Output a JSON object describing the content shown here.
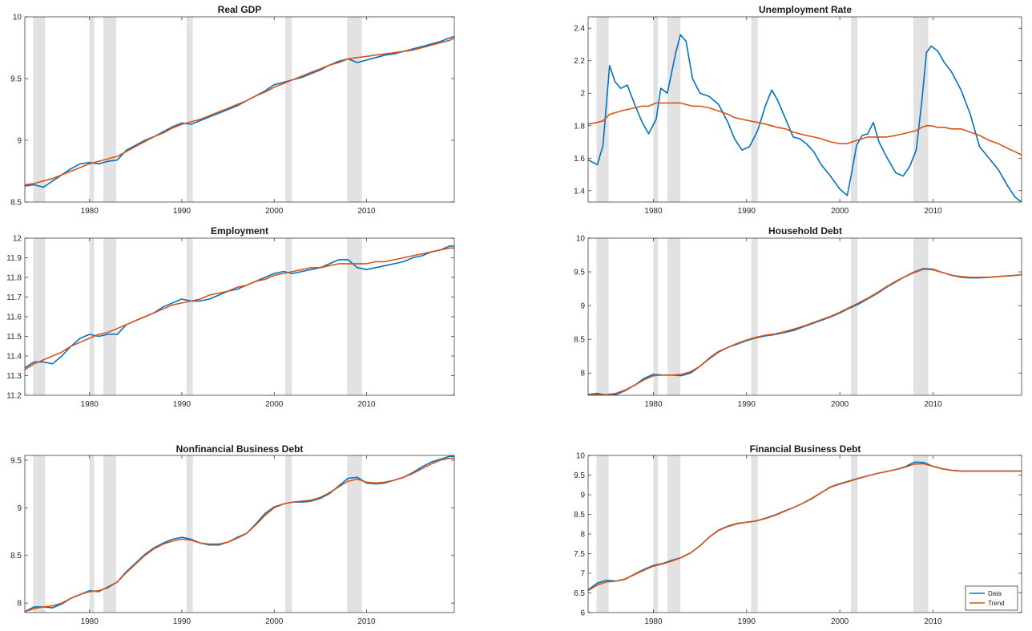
{
  "figure": {
    "colors": {
      "data": "#0072BD",
      "trend": "#D95319",
      "recession": "#e2e2e2",
      "axis": "#262626"
    },
    "recessions": [
      [
        1973.9,
        1975.2
      ],
      [
        1980.0,
        1980.5
      ],
      [
        1981.5,
        1982.9
      ],
      [
        1990.5,
        1991.2
      ],
      [
        2001.2,
        2001.9
      ],
      [
        2007.9,
        2009.5
      ]
    ],
    "x_ticks": [
      1980,
      1990,
      2000,
      2010
    ],
    "xlim": [
      1973,
      2019.5
    ]
  },
  "legend": {
    "entries": [
      "Data",
      "Trend"
    ],
    "placement": "bottom-right of Financial Business Debt"
  },
  "chart_data": [
    {
      "type": "line",
      "title": "Real GDP",
      "ylim": [
        8.5,
        10
      ],
      "y_ticks": [
        "8.5",
        "9",
        "9.5",
        "10"
      ],
      "x": [
        1973,
        1974,
        1975,
        1976,
        1977,
        1978,
        1979,
        1980,
        1981,
        1982,
        1983,
        1984,
        1985,
        1986,
        1987,
        1988,
        1989,
        1990,
        1991,
        1992,
        1993,
        1994,
        1995,
        1996,
        1997,
        1998,
        1999,
        2000,
        2001,
        2002,
        2003,
        2004,
        2005,
        2006,
        2007,
        2008,
        2009,
        2010,
        2011,
        2012,
        2013,
        2014,
        2015,
        2016,
        2017,
        2018,
        2019,
        2019.5
      ],
      "series": [
        {
          "name": "Data",
          "values": [
            8.63,
            8.64,
            8.62,
            8.67,
            8.72,
            8.77,
            8.81,
            8.82,
            8.81,
            8.83,
            8.84,
            8.92,
            8.96,
            9.0,
            9.03,
            9.07,
            9.11,
            9.14,
            9.13,
            9.16,
            9.19,
            9.22,
            9.25,
            9.28,
            9.32,
            9.36,
            9.4,
            9.45,
            9.47,
            9.49,
            9.51,
            9.54,
            9.57,
            9.61,
            9.64,
            9.66,
            9.63,
            9.65,
            9.67,
            9.69,
            9.7,
            9.72,
            9.74,
            9.76,
            9.78,
            9.8,
            9.83,
            9.84
          ]
        },
        {
          "name": "Trend",
          "values": [
            8.64,
            8.65,
            8.67,
            8.69,
            8.72,
            8.75,
            8.78,
            8.81,
            8.83,
            8.85,
            8.87,
            8.91,
            8.95,
            8.99,
            9.03,
            9.06,
            9.1,
            9.13,
            9.15,
            9.17,
            9.2,
            9.23,
            9.26,
            9.29,
            9.32,
            9.36,
            9.39,
            9.43,
            9.46,
            9.49,
            9.52,
            9.55,
            9.58,
            9.61,
            9.63,
            9.66,
            9.67,
            9.68,
            9.69,
            9.7,
            9.71,
            9.72,
            9.73,
            9.75,
            9.77,
            9.79,
            9.81,
            9.83
          ]
        }
      ]
    },
    {
      "type": "line",
      "title": "Unemployment Rate",
      "ylim": [
        1.33,
        2.47
      ],
      "y_ticks": [
        "1.4",
        "1.6",
        "1.8",
        "2",
        "2.2",
        "2.4"
      ],
      "x": [
        1973,
        1974,
        1974.6,
        1975.3,
        1975.9,
        1976.5,
        1977.2,
        1978,
        1978.8,
        1979.5,
        1980.3,
        1980.8,
        1981.5,
        1982.4,
        1982.9,
        1983.5,
        1984.2,
        1985,
        1986,
        1987,
        1988,
        1988.7,
        1989.5,
        1990.3,
        1991.2,
        1992,
        1992.7,
        1993.3,
        1994.2,
        1995,
        1995.7,
        1996.4,
        1997.2,
        1998,
        1999,
        2000,
        2000.8,
        2001.3,
        2001.8,
        2002.4,
        2003,
        2003.6,
        2004.2,
        2005,
        2006,
        2006.8,
        2007.5,
        2008.2,
        2008.8,
        2009.3,
        2009.8,
        2010.5,
        2011.2,
        2012,
        2013,
        2014,
        2015,
        2016,
        2017,
        2018,
        2018.8,
        2019.5
      ],
      "series": [
        {
          "name": "Data",
          "values": [
            1.59,
            1.56,
            1.68,
            2.17,
            2.07,
            2.03,
            2.05,
            1.93,
            1.82,
            1.75,
            1.84,
            2.03,
            2.0,
            2.25,
            2.36,
            2.32,
            2.09,
            2.0,
            1.98,
            1.93,
            1.82,
            1.72,
            1.65,
            1.67,
            1.77,
            1.92,
            2.02,
            1.96,
            1.84,
            1.73,
            1.72,
            1.69,
            1.64,
            1.56,
            1.49,
            1.41,
            1.37,
            1.52,
            1.68,
            1.74,
            1.75,
            1.82,
            1.7,
            1.61,
            1.51,
            1.49,
            1.55,
            1.65,
            1.95,
            2.25,
            2.29,
            2.26,
            2.19,
            2.13,
            2.02,
            1.87,
            1.67,
            1.6,
            1.53,
            1.43,
            1.36,
            1.33
          ]
        },
        {
          "name": "Trend",
          "values": [
            1.81,
            1.82,
            1.83,
            1.87,
            1.88,
            1.89,
            1.9,
            1.91,
            1.92,
            1.92,
            1.94,
            1.94,
            1.94,
            1.94,
            1.94,
            1.93,
            1.92,
            1.92,
            1.91,
            1.89,
            1.87,
            1.85,
            1.84,
            1.83,
            1.82,
            1.81,
            1.8,
            1.79,
            1.78,
            1.76,
            1.75,
            1.74,
            1.73,
            1.72,
            1.7,
            1.69,
            1.69,
            1.7,
            1.71,
            1.72,
            1.73,
            1.73,
            1.73,
            1.73,
            1.74,
            1.75,
            1.76,
            1.77,
            1.79,
            1.8,
            1.8,
            1.79,
            1.79,
            1.78,
            1.78,
            1.76,
            1.74,
            1.71,
            1.69,
            1.66,
            1.64,
            1.62
          ]
        }
      ]
    },
    {
      "type": "line",
      "title": "Employment",
      "ylim": [
        11.2,
        12
      ],
      "y_ticks": [
        "11.2",
        "11.3",
        "11.4",
        "11.5",
        "11.6",
        "11.7",
        "11.8",
        "11.9",
        "12"
      ],
      "x": [
        1973,
        1974,
        1975,
        1976,
        1977,
        1978,
        1979,
        1980,
        1981,
        1982,
        1983,
        1984,
        1985,
        1986,
        1987,
        1988,
        1989,
        1990,
        1991,
        1992,
        1993,
        1994,
        1995,
        1996,
        1997,
        1998,
        1999,
        2000,
        2001,
        2002,
        2003,
        2004,
        2005,
        2006,
        2007,
        2008,
        2009,
        2010,
        2011,
        2012,
        2013,
        2014,
        2015,
        2016,
        2017,
        2018,
        2019,
        2019.5
      ],
      "series": [
        {
          "name": "Data",
          "values": [
            11.34,
            11.37,
            11.37,
            11.36,
            11.4,
            11.45,
            11.49,
            11.51,
            11.5,
            11.51,
            11.51,
            11.56,
            11.58,
            11.6,
            11.62,
            11.65,
            11.67,
            11.69,
            11.68,
            11.68,
            11.69,
            11.71,
            11.73,
            11.74,
            11.76,
            11.78,
            11.8,
            11.82,
            11.83,
            11.82,
            11.83,
            11.84,
            11.85,
            11.87,
            11.89,
            11.89,
            11.85,
            11.84,
            11.85,
            11.86,
            11.87,
            11.88,
            11.9,
            11.91,
            11.93,
            11.94,
            11.96,
            11.96
          ]
        },
        {
          "name": "Trend",
          "values": [
            11.33,
            11.36,
            11.38,
            11.4,
            11.42,
            11.45,
            11.47,
            11.49,
            11.51,
            11.52,
            11.54,
            11.56,
            11.58,
            11.6,
            11.62,
            11.64,
            11.66,
            11.67,
            11.68,
            11.69,
            11.71,
            11.72,
            11.73,
            11.75,
            11.76,
            11.78,
            11.79,
            11.81,
            11.82,
            11.83,
            11.84,
            11.85,
            11.85,
            11.86,
            11.87,
            11.87,
            11.87,
            11.87,
            11.88,
            11.88,
            11.89,
            11.9,
            11.91,
            11.92,
            11.93,
            11.94,
            11.95,
            11.95
          ]
        }
      ]
    },
    {
      "type": "line",
      "title": "Household Debt",
      "ylim": [
        7.67,
        10
      ],
      "y_ticks": [
        "8",
        "8.5",
        "9",
        "9.5",
        "10"
      ],
      "x": [
        1973,
        1974,
        1975,
        1976,
        1977,
        1978,
        1979,
        1980,
        1981,
        1982,
        1983,
        1984,
        1985,
        1986,
        1987,
        1988,
        1989,
        1990,
        1991,
        1992,
        1993,
        1994,
        1995,
        1996,
        1997,
        1998,
        1999,
        2000,
        2001,
        2002,
        2003,
        2004,
        2005,
        2006,
        2007,
        2008,
        2009,
        2010,
        2011,
        2012,
        2013,
        2014,
        2015,
        2016,
        2017,
        2018,
        2019,
        2019.5
      ],
      "series": [
        {
          "name": "Data",
          "values": [
            7.68,
            7.7,
            7.67,
            7.68,
            7.74,
            7.82,
            7.92,
            7.98,
            7.97,
            7.97,
            7.96,
            8.0,
            8.1,
            8.22,
            8.32,
            8.38,
            8.43,
            8.48,
            8.52,
            8.55,
            8.57,
            8.6,
            8.63,
            8.68,
            8.73,
            8.78,
            8.83,
            8.89,
            8.96,
            9.02,
            9.1,
            9.18,
            9.27,
            9.35,
            9.43,
            9.5,
            9.55,
            9.54,
            9.49,
            9.45,
            9.42,
            9.41,
            9.41,
            9.42,
            9.43,
            9.44,
            9.45,
            9.46
          ]
        },
        {
          "name": "Trend",
          "values": [
            7.67,
            7.68,
            7.68,
            7.7,
            7.75,
            7.82,
            7.9,
            7.96,
            7.97,
            7.97,
            7.98,
            8.02,
            8.1,
            8.21,
            8.31,
            8.38,
            8.44,
            8.49,
            8.53,
            8.56,
            8.58,
            8.61,
            8.65,
            8.69,
            8.74,
            8.79,
            8.84,
            8.9,
            8.97,
            9.04,
            9.11,
            9.19,
            9.28,
            9.36,
            9.43,
            9.49,
            9.54,
            9.53,
            9.49,
            9.45,
            9.43,
            9.42,
            9.42,
            9.42,
            9.43,
            9.44,
            9.45,
            9.46
          ]
        }
      ]
    },
    {
      "type": "line",
      "title": "Nonfinancial Business Debt",
      "ylim": [
        7.9,
        9.55
      ],
      "y_ticks": [
        "8",
        "8.5",
        "9",
        "9.5"
      ],
      "x": [
        1973,
        1974,
        1975,
        1976,
        1977,
        1978,
        1979,
        1980,
        1981,
        1982,
        1983,
        1984,
        1985,
        1986,
        1987,
        1988,
        1989,
        1990,
        1991,
        1992,
        1993,
        1994,
        1995,
        1996,
        1997,
        1998,
        1999,
        2000,
        2001,
        2002,
        2003,
        2004,
        2005,
        2006,
        2007,
        2008,
        2009,
        2010,
        2011,
        2012,
        2013,
        2014,
        2015,
        2016,
        2017,
        2018,
        2019,
        2019.5
      ],
      "series": [
        {
          "name": "Data",
          "values": [
            7.91,
            7.96,
            7.96,
            7.95,
            7.99,
            8.05,
            8.09,
            8.13,
            8.12,
            8.17,
            8.22,
            8.33,
            8.42,
            8.51,
            8.58,
            8.63,
            8.67,
            8.69,
            8.67,
            8.63,
            8.61,
            8.61,
            8.64,
            8.69,
            8.73,
            8.83,
            8.94,
            9.01,
            9.04,
            9.06,
            9.06,
            9.07,
            9.1,
            9.15,
            9.23,
            9.31,
            9.32,
            9.26,
            9.25,
            9.26,
            9.29,
            9.32,
            9.37,
            9.43,
            9.48,
            9.51,
            9.54,
            9.54
          ]
        },
        {
          "name": "Trend",
          "values": [
            7.91,
            7.94,
            7.96,
            7.97,
            8.0,
            8.05,
            8.09,
            8.12,
            8.13,
            8.16,
            8.22,
            8.32,
            8.41,
            8.5,
            8.57,
            8.62,
            8.65,
            8.67,
            8.66,
            8.63,
            8.62,
            8.62,
            8.64,
            8.68,
            8.73,
            8.82,
            8.92,
            9.0,
            9.04,
            9.06,
            9.07,
            9.08,
            9.11,
            9.16,
            9.22,
            9.28,
            9.3,
            9.27,
            9.26,
            9.27,
            9.29,
            9.32,
            9.36,
            9.41,
            9.46,
            9.5,
            9.52,
            9.52
          ]
        }
      ]
    },
    {
      "type": "line",
      "title": "Financial Business Debt",
      "ylim": [
        6,
        10
      ],
      "y_ticks": [
        "6",
        "6.5",
        "7",
        "7.5",
        "8",
        "8.5",
        "9",
        "9.5",
        "10"
      ],
      "x": [
        1973,
        1974,
        1975,
        1976,
        1977,
        1978,
        1979,
        1980,
        1981,
        1982,
        1983,
        1984,
        1985,
        1986,
        1987,
        1988,
        1989,
        1990,
        1991,
        1992,
        1993,
        1994,
        1995,
        1996,
        1997,
        1998,
        1999,
        2000,
        2001,
        2002,
        2003,
        2004,
        2005,
        2006,
        2007,
        2008,
        2009,
        2010,
        2011,
        2012,
        2013,
        2014,
        2015,
        2016,
        2017,
        2018,
        2019,
        2019.5
      ],
      "series": [
        {
          "name": "Data",
          "values": [
            6.58,
            6.75,
            6.82,
            6.8,
            6.85,
            6.98,
            7.1,
            7.2,
            7.25,
            7.33,
            7.4,
            7.52,
            7.7,
            7.92,
            8.1,
            8.2,
            8.27,
            8.3,
            8.33,
            8.4,
            8.48,
            8.58,
            8.67,
            8.78,
            8.9,
            9.05,
            9.2,
            9.28,
            9.35,
            9.42,
            9.48,
            9.54,
            9.59,
            9.64,
            9.71,
            9.83,
            9.82,
            9.72,
            9.66,
            9.62,
            9.6,
            9.6,
            9.6,
            9.6,
            9.6,
            9.6,
            9.6,
            9.6
          ]
        },
        {
          "name": "Trend",
          "values": [
            6.56,
            6.7,
            6.78,
            6.8,
            6.86,
            6.97,
            7.08,
            7.18,
            7.24,
            7.31,
            7.4,
            7.52,
            7.7,
            7.92,
            8.09,
            8.19,
            8.26,
            8.3,
            8.33,
            8.39,
            8.47,
            8.57,
            8.67,
            8.78,
            8.91,
            9.05,
            9.19,
            9.27,
            9.34,
            9.41,
            9.48,
            9.54,
            9.59,
            9.64,
            9.7,
            9.78,
            9.79,
            9.72,
            9.66,
            9.62,
            9.6,
            9.6,
            9.6,
            9.6,
            9.6,
            9.6,
            9.6,
            9.6
          ]
        }
      ]
    }
  ]
}
